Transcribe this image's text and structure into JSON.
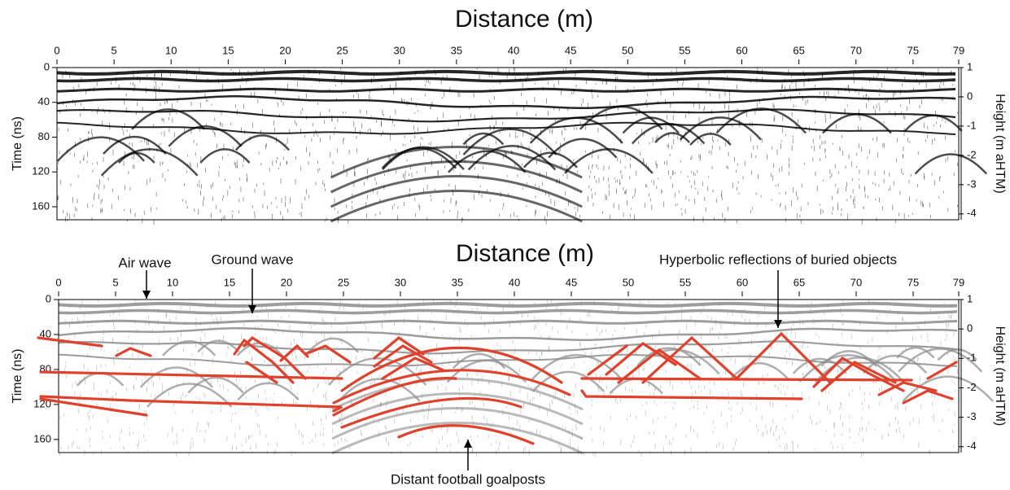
{
  "chart_data": [
    {
      "type": "radargram",
      "title": "Distance (m)",
      "ylabel": "Time (ns)",
      "y2label": "Height (m aHTM)",
      "xlim": [
        0,
        79
      ],
      "xticks": [
        0,
        5,
        10,
        15,
        20,
        25,
        30,
        35,
        40,
        45,
        50,
        55,
        60,
        65,
        70,
        75,
        79
      ],
      "ylim": [
        0,
        175
      ],
      "yticks": [
        0,
        40,
        80,
        120,
        160
      ],
      "y2lim": [
        1,
        -4.2
      ],
      "y2ticks": [
        1,
        0,
        -1,
        -2,
        -3,
        -4
      ],
      "color": "#000000"
    },
    {
      "type": "radargram",
      "title": "Distance (m)",
      "ylabel": "Time (ns)",
      "y2label": "Height (m aHTM)",
      "xlim": [
        0,
        79
      ],
      "xticks": [
        0,
        5,
        10,
        15,
        20,
        25,
        30,
        35,
        40,
        45,
        50,
        55,
        60,
        65,
        70,
        75,
        79
      ],
      "ylim": [
        0,
        175
      ],
      "yticks": [
        0,
        40,
        80,
        120,
        160
      ],
      "y2lim": [
        1,
        -4.2
      ],
      "y2ticks": [
        1,
        0,
        -1,
        -2,
        -3,
        -4
      ],
      "color": "#8c8c8c",
      "annotations": [
        "Air wave",
        "Ground wave",
        "Hyperbolic reflections of buried objects",
        "Distant football goalposts"
      ]
    }
  ]
}
